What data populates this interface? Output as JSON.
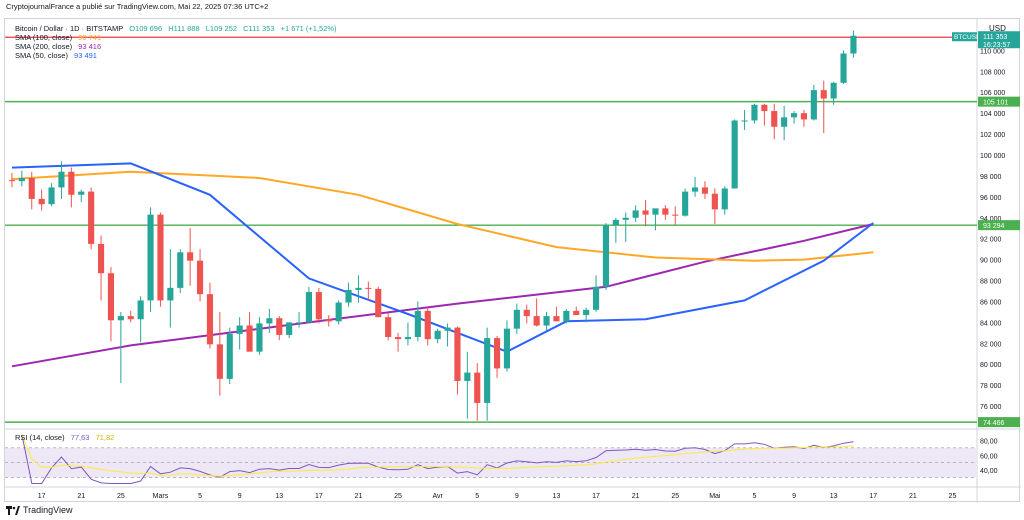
{
  "header": {
    "publisher_line": "CryptojournalFrance a publié sur TradingView.com, Mai 22, 2025 07:36 UTC+2"
  },
  "legend": {
    "symbol_line_label": "Bitcoin / Dollar · 1D · BITSTAMP",
    "ohlc": {
      "o": "O109 696",
      "h": "H111 888",
      "l": "L109 252",
      "c": "C111 353",
      "change": "+1 671 (+1,52%)"
    },
    "sma100_label": "SMA (100, close)",
    "sma100_value": "90 741",
    "sma200_label": "SMA (200, close)",
    "sma200_value": "93 416",
    "sma50_label": "SMA (50, close)",
    "sma50_value": "93 491",
    "rsi_label": "RSI (14, close)",
    "rsi_value": "77,63",
    "rsi_ma_value": "71,82"
  },
  "price_axis": {
    "currency": "USD",
    "ticks": [
      "110 000",
      "108 000",
      "106 000",
      "104 000",
      "102 000",
      "100 000",
      "98 000",
      "96 000",
      "94 000",
      "92 000",
      "90 000",
      "88 000",
      "86 000",
      "84 000",
      "82 000",
      "80 000",
      "78 000",
      "76 000"
    ],
    "ticker_tag": "BTCUSD",
    "last_price": "111 353",
    "countdown": "16:23:57",
    "level_tags": [
      "105 101",
      "93 294",
      "74 466"
    ]
  },
  "rsi_axis": {
    "ticks": [
      "80,00",
      "60,00",
      "40,00"
    ]
  },
  "time_axis": {
    "labels": [
      "17",
      "21",
      "25",
      "Mars",
      "5",
      "9",
      "13",
      "17",
      "21",
      "25",
      "Avr",
      "5",
      "9",
      "13",
      "17",
      "21",
      "25",
      "Mai",
      "5",
      "9",
      "13",
      "17",
      "21",
      "25"
    ]
  },
  "footer": {
    "brand": "TradingView"
  },
  "colors": {
    "up": "#26a69a",
    "down": "#ef5350",
    "sma50": "#2962ff",
    "sma100": "#ffa726",
    "sma200": "#9c27b0",
    "level": "#4caf50",
    "resistance": "#f23645",
    "rsi": "#7e57c2",
    "rsi_ma": "#ffeb3b"
  },
  "chart_data": {
    "type": "candlestick",
    "title": "Bitcoin / Dollar · 1D · BITSTAMP",
    "x_range": [
      "2025-02-14",
      "2025-05-26"
    ],
    "y_range": [
      74000,
      113000
    ],
    "start_date": "2025-02-14",
    "candles": [
      [
        97600,
        98300,
        96900,
        97500
      ],
      [
        97500,
        98500,
        97000,
        97800
      ],
      [
        97800,
        98400,
        94800,
        95800
      ],
      [
        95800,
        96700,
        94700,
        95300
      ],
      [
        95300,
        97300,
        95100,
        96900
      ],
      [
        96900,
        99400,
        95800,
        98400
      ],
      [
        98400,
        98800,
        95000,
        96200
      ],
      [
        96200,
        96700,
        95500,
        96500
      ],
      [
        96500,
        96900,
        91000,
        91500
      ],
      [
        91500,
        92300,
        86100,
        88700
      ],
      [
        88700,
        89300,
        82200,
        84200
      ],
      [
        84200,
        85000,
        78200,
        84600
      ],
      [
        84600,
        85100,
        84000,
        84300
      ],
      [
        84300,
        86500,
        82100,
        86100
      ],
      [
        86100,
        95000,
        85000,
        94300
      ],
      [
        94300,
        94500,
        85500,
        86100
      ],
      [
        86100,
        91000,
        83500,
        87300
      ],
      [
        87300,
        91000,
        86800,
        90700
      ],
      [
        90700,
        93000,
        87500,
        89900
      ],
      [
        89900,
        91000,
        86000,
        86700
      ],
      [
        86700,
        87800,
        81500,
        81900
      ],
      [
        81900,
        85000,
        77000,
        78600
      ],
      [
        78600,
        83500,
        78100,
        82900
      ],
      [
        82900,
        84500,
        81400,
        83700
      ],
      [
        83700,
        85000,
        81300,
        81200
      ],
      [
        81200,
        84500,
        80900,
        83900
      ],
      [
        83900,
        85300,
        83000,
        84400
      ],
      [
        84400,
        84600,
        82300,
        82800
      ],
      [
        82800,
        84000,
        82500,
        84000
      ],
      [
        84000,
        85000,
        83500,
        84000
      ],
      [
        84000,
        87400,
        84000,
        86900
      ],
      [
        86900,
        87300,
        83900,
        84300
      ],
      [
        84300,
        84700,
        83600,
        84100
      ],
      [
        84100,
        86100,
        83800,
        85900
      ],
      [
        85900,
        87800,
        85500,
        87100
      ],
      [
        87100,
        88500,
        85900,
        87300
      ],
      [
        87300,
        87900,
        86100,
        87200
      ],
      [
        87200,
        87400,
        84500,
        84500
      ],
      [
        84500,
        84900,
        82300,
        82600
      ],
      [
        82600,
        83000,
        81200,
        82400
      ],
      [
        82400,
        84000,
        81800,
        82600
      ],
      [
        82600,
        86000,
        82200,
        85100
      ],
      [
        85100,
        85400,
        81800,
        82400
      ],
      [
        82400,
        83400,
        82000,
        83200
      ],
      [
        83200,
        83900,
        81700,
        83500
      ],
      [
        83500,
        83600,
        77100,
        78400
      ],
      [
        78400,
        81200,
        74800,
        79200
      ],
      [
        79200,
        80100,
        74600,
        76300
      ],
      [
        76300,
        83500,
        74600,
        82500
      ],
      [
        82500,
        82700,
        78700,
        79600
      ],
      [
        79600,
        84200,
        79300,
        83400
      ],
      [
        83400,
        85800,
        82900,
        85200
      ],
      [
        85200,
        85700,
        83900,
        84600
      ],
      [
        84600,
        86300,
        83600,
        83700
      ],
      [
        83700,
        85000,
        83200,
        84600
      ],
      [
        84600,
        85500,
        84100,
        84100
      ],
      [
        84100,
        85300,
        83900,
        85100
      ],
      [
        85100,
        85500,
        84800,
        84700
      ],
      [
        84700,
        85400,
        84000,
        85200
      ],
      [
        85200,
        88500,
        85000,
        87400
      ],
      [
        87400,
        93500,
        87100,
        93300
      ],
      [
        93300,
        94000,
        91600,
        93800
      ],
      [
        93800,
        94500,
        91700,
        94000
      ],
      [
        94000,
        95200,
        93600,
        94700
      ],
      [
        94700,
        95700,
        93200,
        94300
      ],
      [
        94300,
        94800,
        92800,
        94900
      ],
      [
        94900,
        95200,
        93800,
        94300
      ],
      [
        94300,
        95100,
        93300,
        94200
      ],
      [
        94200,
        96800,
        94100,
        96500
      ],
      [
        96500,
        97900,
        96000,
        96900
      ],
      [
        96900,
        97500,
        95800,
        96300
      ],
      [
        96300,
        96800,
        93400,
        94800
      ],
      [
        94800,
        97000,
        94300,
        96800
      ],
      [
        96800,
        103400,
        96800,
        103300
      ],
      [
        103300,
        104300,
        102400,
        103300
      ],
      [
        103300,
        104900,
        103000,
        104800
      ],
      [
        104800,
        104900,
        102800,
        104200
      ],
      [
        104200,
        104900,
        101500,
        102700
      ],
      [
        102700,
        104700,
        101400,
        103600
      ],
      [
        103600,
        104200,
        103000,
        104000
      ],
      [
        104000,
        104300,
        102700,
        103400
      ],
      [
        103400,
        106700,
        103300,
        106200
      ],
      [
        106200,
        107100,
        102100,
        105400
      ],
      [
        105400,
        107000,
        104800,
        106900
      ],
      [
        106900,
        110000,
        106800,
        109700
      ],
      [
        109700,
        111900,
        109300,
        111400
      ]
    ],
    "sma50": [
      [
        0,
        98800
      ],
      [
        12,
        99200
      ],
      [
        20,
        96200
      ],
      [
        30,
        88200
      ],
      [
        40,
        84800
      ],
      [
        50,
        81200
      ],
      [
        56,
        84100
      ],
      [
        64,
        84300
      ],
      [
        74,
        86100
      ],
      [
        82,
        89900
      ],
      [
        87,
        93500
      ]
    ],
    "sma100": [
      [
        0,
        97700
      ],
      [
        12,
        98400
      ],
      [
        25,
        97800
      ],
      [
        35,
        96200
      ],
      [
        45,
        93400
      ],
      [
        55,
        91200
      ],
      [
        65,
        90200
      ],
      [
        75,
        89900
      ],
      [
        80,
        90000
      ],
      [
        87,
        90700
      ]
    ],
    "sma200": [
      [
        0,
        79800
      ],
      [
        12,
        81800
      ],
      [
        30,
        84000
      ],
      [
        45,
        85800
      ],
      [
        60,
        87400
      ],
      [
        70,
        89800
      ],
      [
        80,
        91800
      ],
      [
        87,
        93400
      ]
    ],
    "horizontal_levels": [
      111353,
      105101,
      93294,
      74466
    ],
    "rsi": {
      "ylim": [
        20,
        90
      ],
      "band": [
        30,
        70
      ]
    }
  }
}
